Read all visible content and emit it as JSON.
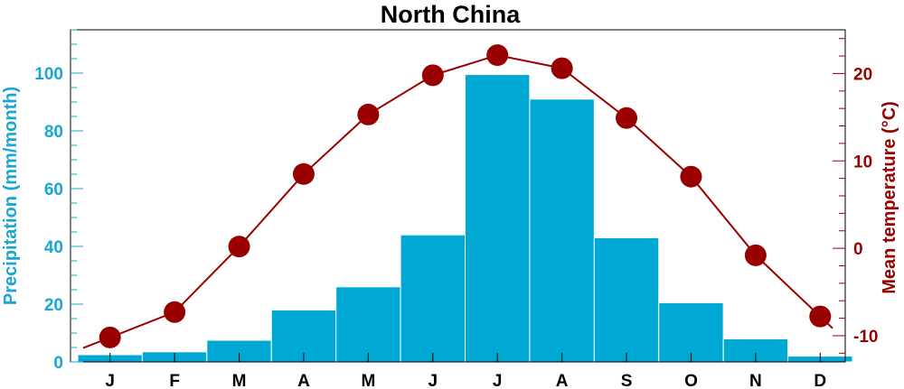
{
  "chart_data": {
    "type": "bar+line",
    "title": "North China",
    "categories": [
      "J",
      "F",
      "M",
      "A",
      "M",
      "J",
      "J",
      "A",
      "S",
      "O",
      "N",
      "D"
    ],
    "series": [
      {
        "name": "Precipitation (mm/month)",
        "type": "bar",
        "axis": "left",
        "color": "#00a9d4",
        "values": [
          2.5,
          3.5,
          7.5,
          18,
          26,
          44,
          99.5,
          91,
          43,
          20.5,
          8,
          2
        ]
      },
      {
        "name": "Mean temperature (°C)",
        "type": "line",
        "axis": "right",
        "color": "#990000",
        "values": [
          -10.2,
          -7.3,
          0.2,
          8.5,
          15.3,
          19.8,
          22.1,
          20.6,
          14.9,
          8.2,
          -0.8,
          -7.8
        ]
      }
    ],
    "ylabel_left": "Precipitation (mm/month)",
    "ylabel_right": "Mean temperature (°C)",
    "ylim_left": [
      0,
      115
    ],
    "ylim_right": [
      -13,
      25
    ],
    "yticks_left": [
      0,
      20,
      40,
      60,
      80,
      100
    ],
    "yticks_right": [
      -10,
      0,
      10,
      20
    ],
    "grid": false,
    "colors": {
      "left_axis": "#1aa6d2",
      "right_axis": "#990000",
      "bar_fill": "#00a9d4",
      "line": "#990000"
    }
  }
}
